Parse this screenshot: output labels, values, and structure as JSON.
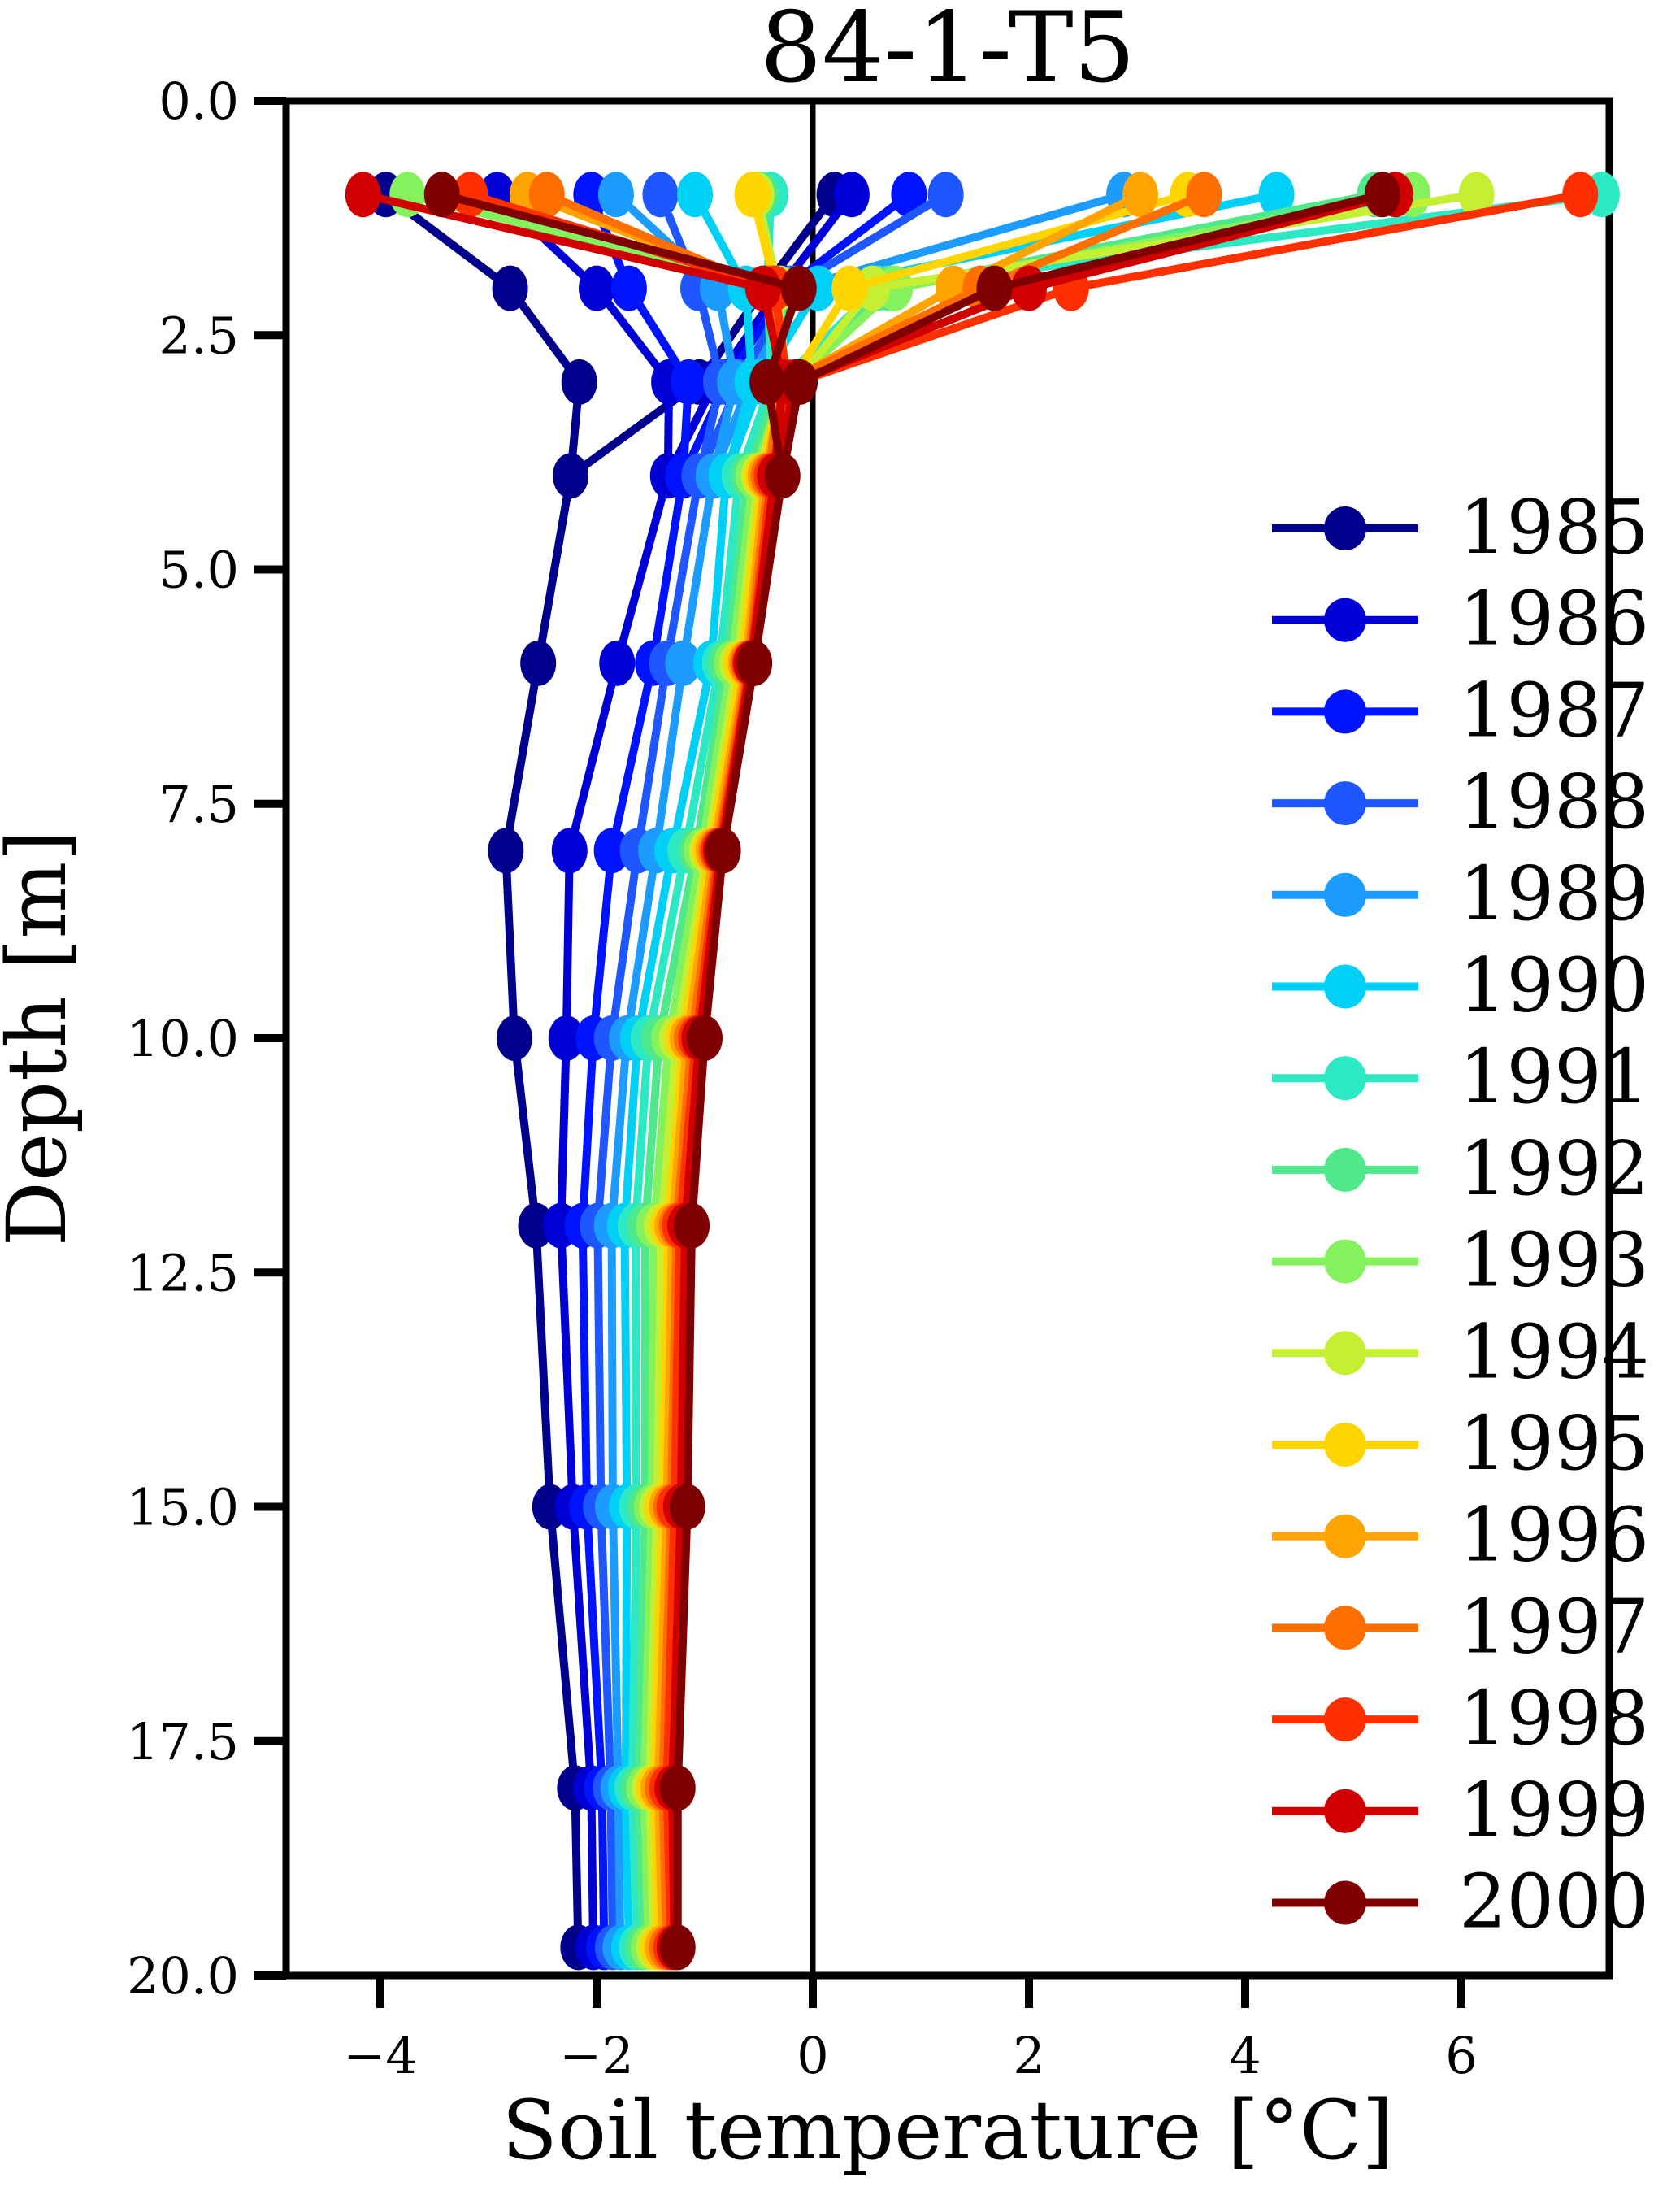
{
  "title": "84-1-T5",
  "axes": {
    "xlabel": "Soil temperature [°C]",
    "ylabel": "Depth [m]",
    "x_tick_values": [
      -4,
      -2,
      0,
      2,
      4,
      6
    ],
    "x_tick_labels": [
      "−4",
      "−2",
      "0",
      "2",
      "4",
      "6"
    ],
    "y_tick_values": [
      0,
      2.5,
      5,
      7.5,
      10,
      12.5,
      15,
      17.5,
      20
    ],
    "y_tick_labels": [
      "0.0",
      "2.5",
      "5.0",
      "7.5",
      "10.0",
      "12.5",
      "15.0",
      "17.5",
      "20.0"
    ],
    "xlim": [
      -4.87,
      7.37
    ],
    "ylim": [
      0,
      20
    ],
    "y_inverted": true,
    "zero_reference_line_x": 0,
    "grid": false
  },
  "legend": {
    "position": "inside-right",
    "entries_from": "chart_data.series"
  },
  "chart_data": {
    "type": "line",
    "title": "84-1-T5",
    "xlabel": "Soil temperature [°C]",
    "ylabel": "Depth [m]",
    "x_unit": "°C",
    "y_unit": "m",
    "depths": [
      1,
      2,
      3,
      4,
      6,
      8,
      10,
      12,
      15,
      18,
      19.7
    ],
    "warm_branch_depths": [
      1,
      2,
      3,
      4
    ],
    "note": "Each year has a cold-surface profile (cold) and a warm-surface branch (warm) that merges with it at 4 m depth; values in °C read from plot",
    "series": [
      {
        "year": "1985",
        "color": "#00008c",
        "cold": [
          -3.95,
          -2.8,
          -2.16,
          -2.24,
          -2.54,
          -2.84,
          -2.76,
          -2.56,
          -2.43,
          -2.2,
          -2.17
        ],
        "warm": [
          0.2,
          -0.45,
          -1.05,
          -2.24
        ]
      },
      {
        "year": "1986",
        "color": "#0000d6",
        "cold": [
          -2.92,
          -2.0,
          -1.33,
          -1.34,
          -1.81,
          -2.25,
          -2.28,
          -2.33,
          -2.22,
          -2.05,
          -2.03
        ],
        "warm": [
          0.36,
          -0.3,
          -0.9,
          -1.34
        ]
      },
      {
        "year": "1987",
        "color": "#0013ff",
        "cold": [
          -2.05,
          -1.7,
          -1.15,
          -1.2,
          -1.48,
          -1.86,
          -2.03,
          -2.13,
          -2.09,
          -1.95,
          -1.93
        ],
        "warm": [
          0.89,
          -0.25,
          -0.8,
          -1.2
        ]
      },
      {
        "year": "1988",
        "color": "#1e56ff",
        "cold": [
          -1.41,
          -1.06,
          -0.85,
          -1.05,
          -1.35,
          -1.62,
          -1.86,
          -1.99,
          -1.96,
          -1.87,
          -1.85
        ],
        "warm": [
          1.23,
          -0.2,
          -0.68,
          -1.05
        ]
      },
      {
        "year": "1989",
        "color": "#1c9cff",
        "cold": [
          -1.82,
          -0.88,
          -0.72,
          -0.92,
          -1.2,
          -1.45,
          -1.72,
          -1.86,
          -1.85,
          -1.8,
          -1.78
        ],
        "warm": [
          2.88,
          -0.15,
          -0.58,
          -0.92
        ]
      },
      {
        "year": "1990",
        "color": "#00d0f5",
        "cold": [
          -1.09,
          -0.62,
          -0.56,
          -0.8,
          -0.94,
          -1.3,
          -1.62,
          -1.74,
          -1.72,
          -1.73,
          -1.7
        ],
        "warm": [
          4.29,
          0.05,
          -0.48,
          -0.8
        ]
      },
      {
        "year": "1991",
        "color": "#2ce8c3",
        "cold": [
          -0.39,
          -0.42,
          -0.38,
          -0.68,
          -0.86,
          -1.18,
          -1.52,
          -1.64,
          -1.63,
          -1.67,
          -1.63
        ],
        "warm": [
          7.3,
          0.6,
          -0.3,
          -0.68
        ]
      },
      {
        "year": "1992",
        "color": "#4fe88a",
        "cold": [
          -0.48,
          -0.36,
          -0.32,
          -0.6,
          -0.8,
          -1.08,
          -1.42,
          -1.55,
          -1.55,
          -1.61,
          -1.57
        ],
        "warm": [
          5.2,
          0.7,
          -0.22,
          -0.6
        ]
      },
      {
        "year": "1993",
        "color": "#83f25c",
        "cold": [
          -3.75,
          -0.3,
          -0.26,
          -0.55,
          -0.75,
          -1.03,
          -1.33,
          -1.47,
          -1.49,
          -1.56,
          -1.52
        ],
        "warm": [
          5.55,
          0.76,
          -0.18,
          -0.55
        ]
      },
      {
        "year": "1994",
        "color": "#c5ef33",
        "cold": [
          -0.52,
          -0.32,
          -0.28,
          -0.5,
          -0.7,
          -0.98,
          -1.26,
          -1.4,
          -1.44,
          -1.51,
          -1.47
        ],
        "warm": [
          6.14,
          0.55,
          -0.15,
          -0.5
        ]
      },
      {
        "year": "1995",
        "color": "#ffd500",
        "cold": [
          -0.56,
          -0.34,
          -0.3,
          -0.47,
          -0.66,
          -0.95,
          -1.2,
          -1.34,
          -1.39,
          -1.47,
          -1.43
        ],
        "warm": [
          3.47,
          0.34,
          -0.2,
          -0.47
        ]
      },
      {
        "year": "1996",
        "color": "#ffa400",
        "cold": [
          -2.64,
          -0.38,
          -0.28,
          -0.44,
          -0.62,
          -0.92,
          -1.16,
          -1.3,
          -1.35,
          -1.43,
          -1.39
        ],
        "warm": [
          3.03,
          1.3,
          -0.22,
          -0.44
        ]
      },
      {
        "year": "1997",
        "color": "#ff6f00",
        "cold": [
          -2.46,
          -0.42,
          -0.3,
          -0.41,
          -0.6,
          -0.89,
          -1.12,
          -1.26,
          -1.31,
          -1.39,
          -1.35
        ],
        "warm": [
          3.62,
          1.55,
          -0.25,
          -0.41
        ]
      },
      {
        "year": "1998",
        "color": "#fe3000",
        "cold": [
          -3.17,
          -0.35,
          -0.24,
          -0.38,
          -0.58,
          -0.87,
          -1.08,
          -1.23,
          -1.28,
          -1.35,
          -1.31
        ],
        "warm": [
          7.1,
          2.39,
          -0.14,
          -0.38
        ]
      },
      {
        "year": "1999",
        "color": "#d10000",
        "cold": [
          -4.16,
          -0.46,
          -0.28,
          -0.35,
          -0.57,
          -0.85,
          -1.05,
          -1.18,
          -1.22,
          -1.3,
          -1.28
        ],
        "warm": [
          5.39,
          2.0,
          -0.16,
          -0.35
        ]
      },
      {
        "year": "2000",
        "color": "#7f0000",
        "cold": [
          -3.43,
          -0.13,
          -0.42,
          -0.28,
          -0.54,
          -0.83,
          -1.0,
          -1.12,
          -1.16,
          -1.25,
          -1.25
        ],
        "warm": [
          5.27,
          1.68,
          -0.12,
          -0.28
        ]
      }
    ]
  }
}
